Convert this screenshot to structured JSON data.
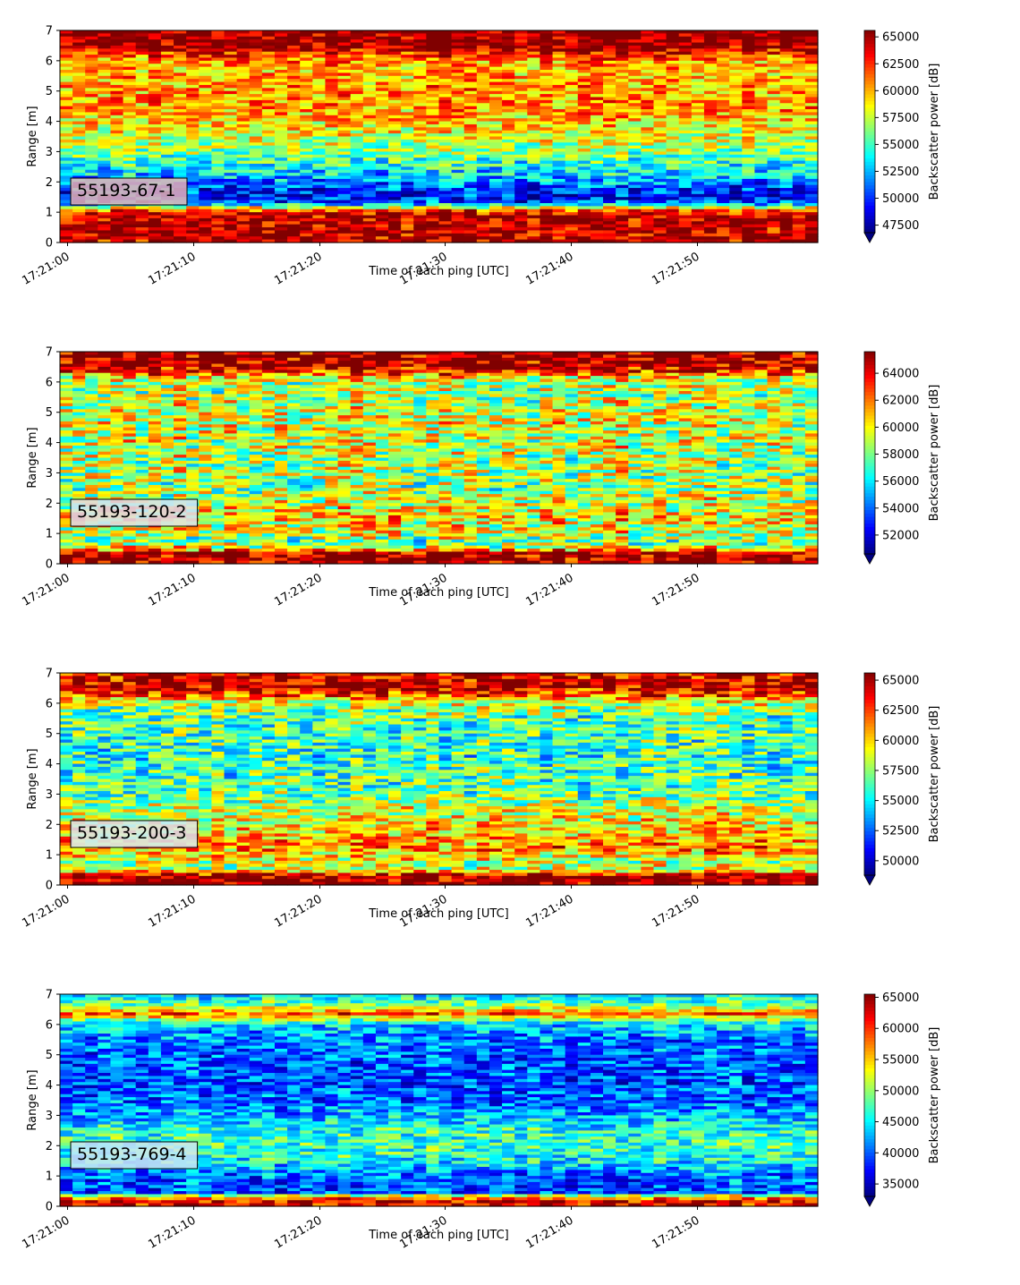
{
  "chart_data": [
    {
      "type": "heatmap",
      "label": "55193-67-1",
      "label_color": "#e6b5b5",
      "xlabel": "Time of each ping [UTC]",
      "ylabel": "Range [m]",
      "colorbar_label": "Backscatter power [dB]",
      "colormap": "jet",
      "x_ticks": [
        "17:21:00",
        "17:21:10",
        "17:21:20",
        "17:21:30",
        "17:21:40",
        "17:21:50"
      ],
      "xlim": [
        "17:20:59.5",
        "17:21:59.5"
      ],
      "ylim": [
        0,
        7
      ],
      "y_ticks": [
        0,
        1,
        2,
        3,
        4,
        5,
        6,
        7
      ],
      "clim": [
        46800,
        65600
      ],
      "colorbar_ticks": [
        47500,
        50000,
        52500,
        55000,
        57500,
        60000,
        62500,
        65000
      ],
      "seed": 11,
      "profile": [
        [
          0.0,
          64000
        ],
        [
          0.25,
          64500
        ],
        [
          0.9,
          64500
        ],
        [
          1.05,
          62000
        ],
        [
          1.15,
          58000
        ],
        [
          1.3,
          51000
        ],
        [
          1.5,
          49500
        ],
        [
          1.8,
          50500
        ],
        [
          2.1,
          52500
        ],
        [
          2.6,
          54500
        ],
        [
          3.0,
          56500
        ],
        [
          3.5,
          58000
        ],
        [
          4.0,
          59500
        ],
        [
          4.5,
          60500
        ],
        [
          5.0,
          60500
        ],
        [
          5.5,
          60000
        ],
        [
          6.0,
          60500
        ],
        [
          6.3,
          63500
        ],
        [
          6.5,
          65500
        ],
        [
          7.0,
          65500
        ]
      ],
      "noise": 3200
    },
    {
      "type": "heatmap",
      "label": "55193-120-2",
      "label_color": "#dde3ee",
      "xlabel": "Time of each ping [UTC]",
      "ylabel": "Range [m]",
      "colorbar_label": "Backscatter power [dB]",
      "colormap": "jet",
      "x_ticks": [
        "17:21:00",
        "17:21:10",
        "17:21:20",
        "17:21:30",
        "17:21:40",
        "17:21:50"
      ],
      "xlim": [
        "17:20:59.5",
        "17:21:59.5"
      ],
      "ylim": [
        0,
        7
      ],
      "y_ticks": [
        0,
        1,
        2,
        3,
        4,
        5,
        6,
        7
      ],
      "clim": [
        50600,
        65600
      ],
      "colorbar_ticks": [
        52000,
        54000,
        56000,
        58000,
        60000,
        62000,
        64000
      ],
      "seed": 23,
      "profile": [
        [
          0.0,
          65500
        ],
        [
          0.35,
          65500
        ],
        [
          0.5,
          60000
        ],
        [
          0.7,
          58000
        ],
        [
          1.0,
          59500
        ],
        [
          1.5,
          60500
        ],
        [
          2.0,
          59500
        ],
        [
          2.5,
          58500
        ],
        [
          3.0,
          59000
        ],
        [
          3.5,
          59000
        ],
        [
          4.0,
          59500
        ],
        [
          4.5,
          59500
        ],
        [
          5.0,
          59500
        ],
        [
          5.5,
          59000
        ],
        [
          6.0,
          59000
        ],
        [
          6.3,
          62500
        ],
        [
          6.5,
          65500
        ],
        [
          7.0,
          65500
        ]
      ],
      "noise": 3400
    },
    {
      "type": "heatmap",
      "label": "55193-200-3",
      "label_color": "#d8e9f2",
      "xlabel": "Time of each ping [UTC]",
      "ylabel": "Range [m]",
      "colorbar_label": "Backscatter power [dB]",
      "colormap": "jet",
      "x_ticks": [
        "17:21:00",
        "17:21:10",
        "17:21:20",
        "17:21:30",
        "17:21:40",
        "17:21:50"
      ],
      "xlim": [
        "17:20:59.5",
        "17:21:59.5"
      ],
      "ylim": [
        0,
        7
      ],
      "y_ticks": [
        0,
        1,
        2,
        3,
        4,
        5,
        6,
        7
      ],
      "clim": [
        48800,
        65600
      ],
      "colorbar_ticks": [
        50000,
        52500,
        55000,
        57500,
        60000,
        62500,
        65000
      ],
      "seed": 37,
      "profile": [
        [
          0.0,
          65500
        ],
        [
          0.3,
          65500
        ],
        [
          0.5,
          58500
        ],
        [
          0.8,
          58500
        ],
        [
          1.2,
          61500
        ],
        [
          1.6,
          60500
        ],
        [
          2.0,
          59500
        ],
        [
          2.5,
          58500
        ],
        [
          3.0,
          57000
        ],
        [
          3.5,
          56500
        ],
        [
          4.0,
          56000
        ],
        [
          4.5,
          56000
        ],
        [
          5.0,
          56500
        ],
        [
          5.5,
          56500
        ],
        [
          6.0,
          58500
        ],
        [
          6.3,
          63000
        ],
        [
          6.6,
          65000
        ],
        [
          7.0,
          63500
        ]
      ],
      "noise": 3400
    },
    {
      "type": "heatmap",
      "label": "55193-769-4",
      "label_color": "#cce6f5",
      "xlabel": "Time of each ping [UTC]",
      "ylabel": "Range [m]",
      "colorbar_label": "Backscatter power [dB]",
      "colormap": "jet",
      "x_ticks": [
        "17:21:00",
        "17:21:10",
        "17:21:20",
        "17:21:30",
        "17:21:40",
        "17:21:50"
      ],
      "xlim": [
        "17:20:59.5",
        "17:21:59.5"
      ],
      "ylim": [
        0,
        7
      ],
      "y_ticks": [
        0,
        1,
        2,
        3,
        4,
        5,
        6,
        7
      ],
      "clim": [
        33000,
        65500
      ],
      "colorbar_ticks": [
        35000,
        40000,
        45000,
        50000,
        55000,
        60000,
        65000
      ],
      "seed": 53,
      "profile": [
        [
          0.0,
          62000
        ],
        [
          0.15,
          62000
        ],
        [
          0.3,
          57000
        ],
        [
          0.45,
          40000
        ],
        [
          1.0,
          40500
        ],
        [
          1.5,
          45500
        ],
        [
          2.0,
          47500
        ],
        [
          2.5,
          47000
        ],
        [
          3.0,
          43000
        ],
        [
          3.5,
          40500
        ],
        [
          4.0,
          40000
        ],
        [
          4.5,
          40000
        ],
        [
          5.0,
          40500
        ],
        [
          5.5,
          41500
        ],
        [
          6.0,
          44000
        ],
        [
          6.35,
          59000
        ],
        [
          6.6,
          50000
        ],
        [
          7.0,
          44000
        ]
      ],
      "noise": 5200
    }
  ]
}
